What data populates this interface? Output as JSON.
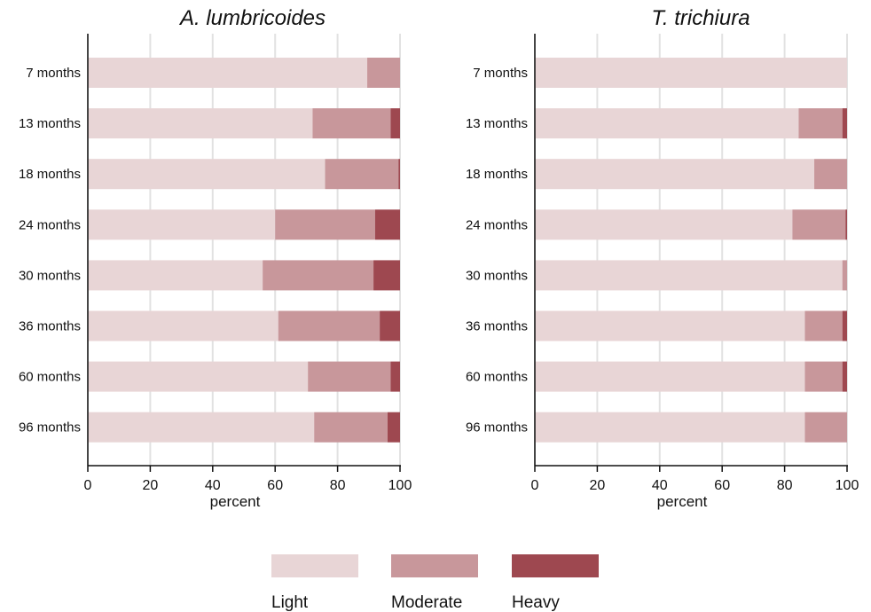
{
  "chart_data": [
    {
      "type": "bar",
      "orientation": "horizontal",
      "stacked": true,
      "title": "A. lumbricoides",
      "xlabel": "percent",
      "xlim": [
        0,
        100
      ],
      "xticks": [
        0,
        20,
        40,
        60,
        80,
        100
      ],
      "grid": true,
      "categories": [
        "7 months",
        "13 months",
        "18 months",
        "24 months",
        "30 months",
        "36 months",
        "60 months",
        "96 months"
      ],
      "series": [
        {
          "name": "Light",
          "values": [
            89.5,
            72,
            76,
            60,
            56,
            61,
            70.5,
            72.5
          ]
        },
        {
          "name": "Moderate",
          "values": [
            10.5,
            25,
            23.5,
            32,
            35.5,
            32.5,
            26.5,
            23.5
          ]
        },
        {
          "name": "Heavy",
          "values": [
            0,
            3,
            0.5,
            8,
            8.5,
            6.5,
            3,
            4
          ]
        }
      ]
    },
    {
      "type": "bar",
      "orientation": "horizontal",
      "stacked": true,
      "title": "T. trichiura",
      "xlabel": "percent",
      "xlim": [
        0,
        100
      ],
      "xticks": [
        0,
        20,
        40,
        60,
        80,
        100
      ],
      "grid": true,
      "categories": [
        "7 months",
        "13 months",
        "18 months",
        "24 months",
        "30 months",
        "36 months",
        "60 months",
        "96 months"
      ],
      "series": [
        {
          "name": "Light",
          "values": [
            100,
            84.5,
            89.5,
            82.5,
            98.5,
            86.5,
            86.5,
            86.5
          ]
        },
        {
          "name": "Moderate",
          "values": [
            0,
            14,
            10.5,
            17,
            1.5,
            12,
            12,
            13.5
          ]
        },
        {
          "name": "Heavy",
          "values": [
            0,
            1.5,
            0,
            0.5,
            0,
            1.5,
            1.5,
            0
          ]
        }
      ]
    }
  ],
  "legend": {
    "position": "bottom",
    "items": [
      {
        "label": "Light",
        "color": "#e8d5d6"
      },
      {
        "label": "Moderate",
        "color": "#c8979b"
      },
      {
        "label": "Heavy",
        "color": "#9e4850"
      }
    ]
  },
  "colors": {
    "light": "#e8d5d6",
    "moderate": "#c8979b",
    "heavy": "#9e4850",
    "grid": "#e2e2e2",
    "axis": "#111111"
  }
}
